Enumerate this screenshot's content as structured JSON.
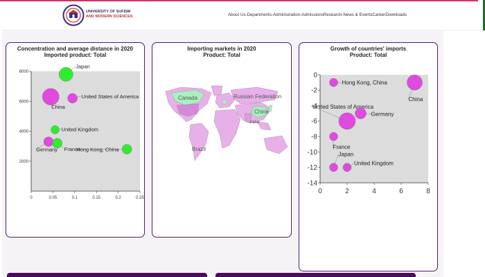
{
  "header": {
    "logo_line1": "UNIVERSITY OF SUFISM",
    "logo_line2": "AND MODERN SCIENCES",
    "nav": [
      "About Us",
      "Departments",
      "Administration",
      "Admissions",
      "Research",
      "News & Events",
      "Career",
      "Downloads"
    ],
    "nav_separator": " - "
  },
  "colors": {
    "accent": "#4b1a6b",
    "bubble_magenta": "#e040e0",
    "bubble_green": "#22ee22",
    "map_pink": "#e8b0e8",
    "map_green": "#a8f0c0"
  },
  "panel1": {
    "title_line1": "Concentration and average distance in 2020",
    "title_line2": "Imported product: Total"
  },
  "panel2": {
    "title_line1": "Importing markets in 2020",
    "title_line2": "Product: Total",
    "map_labels": [
      "Canada",
      "Russian Federation",
      "China",
      "India",
      "Brazil"
    ]
  },
  "panel3": {
    "title_line1": "Growth of countries' imports",
    "title_line2": "Product: Total"
  },
  "chart_data": [
    {
      "type": "scatter",
      "title": "Concentration and average distance in 2020\nImported product: Total",
      "xlabel": "",
      "ylabel": "",
      "xlim": [
        0,
        0.25
      ],
      "ylim": [
        0,
        8000
      ],
      "xticks": [
        "0",
        "0.05",
        "0.1",
        "0.15",
        "0.2",
        "0.25"
      ],
      "yticks": [
        "2000",
        "4000",
        "6000",
        "8000"
      ],
      "points": [
        {
          "label": "Japan",
          "x": 0.08,
          "y": 7800,
          "color": "#22ee22"
        },
        {
          "label": "United States of America",
          "x": 0.095,
          "y": 6200,
          "color": "#e040e0"
        },
        {
          "label": "China",
          "x": 0.045,
          "y": 6300,
          "color": "#e040e0"
        },
        {
          "label": "United Kingdom",
          "x": 0.055,
          "y": 4100,
          "color": "#22ee22"
        },
        {
          "label": "Germany",
          "x": 0.04,
          "y": 3300,
          "color": "#e040e0"
        },
        {
          "label": "France",
          "x": 0.06,
          "y": 3200,
          "color": "#22ee22"
        },
        {
          "label": "Hong Kong, China",
          "x": 0.22,
          "y": 2800,
          "color": "#22ee22"
        }
      ]
    },
    {
      "type": "scatter",
      "title": "Growth of countries' imports\nProduct: Total",
      "xlabel": "",
      "ylabel": "",
      "xlim": [
        0,
        8
      ],
      "ylim": [
        -14,
        0
      ],
      "xticks": [
        "0",
        "2",
        "4",
        "6",
        "8"
      ],
      "yticks": [
        "0",
        "-2",
        "-4",
        "-6",
        "-8",
        "-10",
        "-12",
        "-14"
      ],
      "points": [
        {
          "label": "Hong Kong, China",
          "x": 1,
          "y": -1,
          "color": "#e040e0"
        },
        {
          "label": "China",
          "x": 7,
          "y": -1,
          "color": "#e040e0"
        },
        {
          "label": "United States of America",
          "x": 2,
          "y": -6,
          "color": "#e040e0"
        },
        {
          "label": "Germany",
          "x": 3,
          "y": -5,
          "color": "#e040e0"
        },
        {
          "label": "France",
          "x": 1,
          "y": -8,
          "color": "#e040e0"
        },
        {
          "label": "Japan",
          "x": 1,
          "y": -12,
          "color": "#e040e0"
        },
        {
          "label": "United Kingdom",
          "x": 2,
          "y": -12,
          "color": "#e040e0"
        }
      ]
    }
  ]
}
